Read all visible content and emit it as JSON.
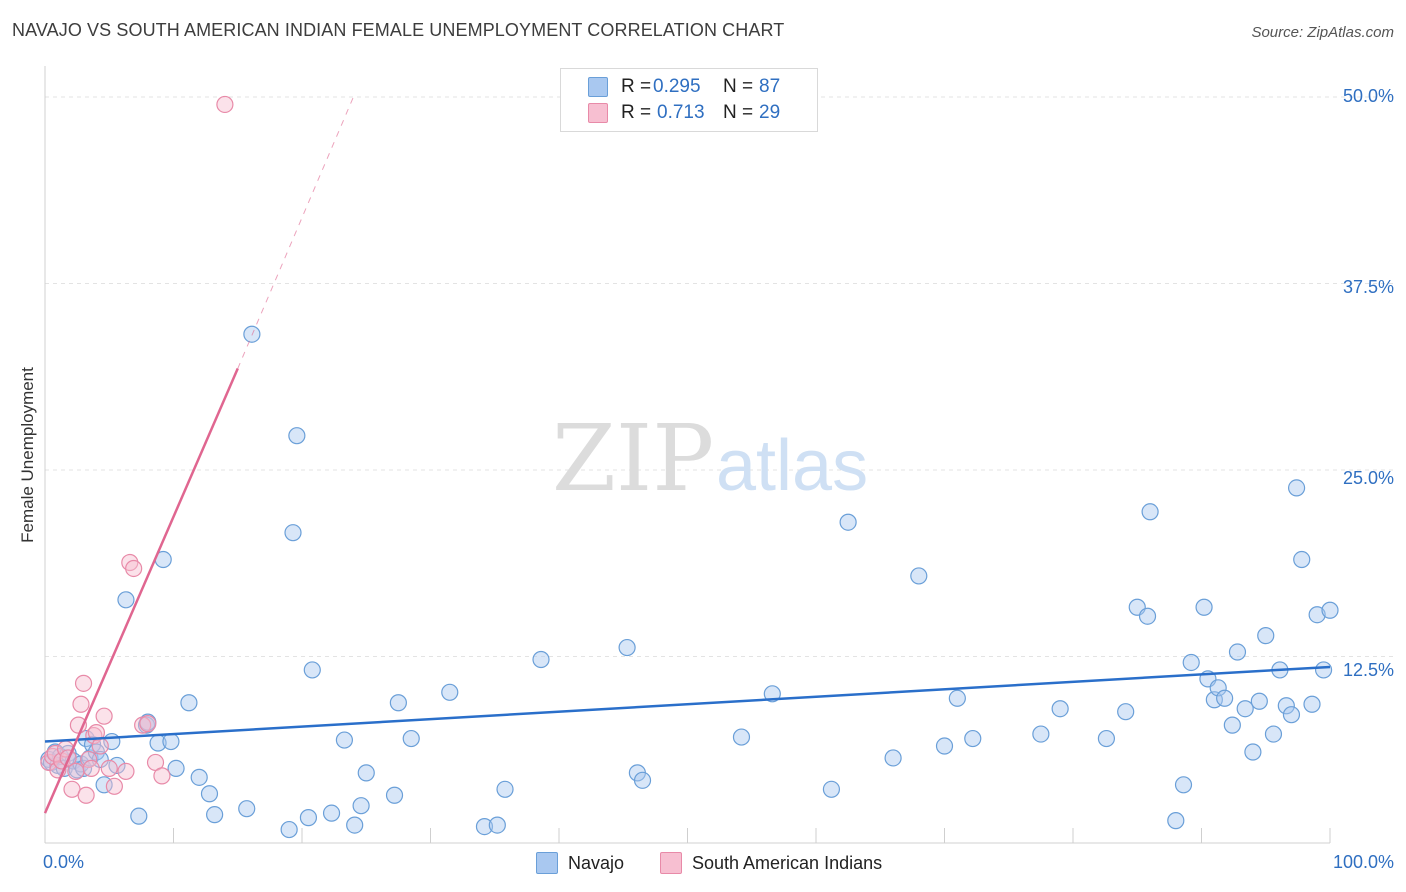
{
  "title": "NAVAJO VS SOUTH AMERICAN INDIAN FEMALE UNEMPLOYMENT CORRELATION CHART",
  "source": "Source: ZipAtlas.com",
  "watermark": {
    "zip": "ZIP",
    "atlas": "atlas"
  },
  "legend": {
    "rows": [
      {
        "r_label": "R =",
        "r_value": "0.295",
        "n_label": "N =",
        "n_value": "87",
        "color": "#a9c8f0",
        "stroke": "#6a9fd8"
      },
      {
        "r_label": "R =",
        "r_value": "0.713",
        "n_label": "N =",
        "n_value": "29",
        "color": "#f7bfd1",
        "stroke": "#e88aa8"
      }
    ]
  },
  "bottom_legend": {
    "navajo": "Navajo",
    "south_american": "South American Indians"
  },
  "axis": {
    "x_min_label": "0.0%",
    "x_max_label": "100.0%",
    "y_ticks": [
      "12.5%",
      "25.0%",
      "37.5%",
      "50.0%"
    ],
    "ylabel": "Female Unemployment"
  },
  "colors": {
    "navajo_fill": "#a9c8f0",
    "navajo_stroke": "#6a9fd8",
    "navajo_line": "#2a6fca",
    "sai_fill": "#f7bfd1",
    "sai_stroke": "#e88aa8",
    "sai_line": "#e06690"
  },
  "chart_data": {
    "type": "scatter",
    "title": "NAVAJO VS SOUTH AMERICAN INDIAN FEMALE UNEMPLOYMENT CORRELATION CHART",
    "xlabel": "",
    "ylabel": "Female Unemployment",
    "xlim": [
      0,
      100
    ],
    "ylim": [
      0,
      50
    ],
    "series": [
      {
        "name": "Navajo",
        "r": 0.295,
        "n": 87,
        "trend": {
          "x0": 0,
          "y0": 6.8,
          "x1": 100,
          "y1": 11.8
        },
        "points": [
          [
            0.3,
            5.6
          ],
          [
            0.5,
            5.4
          ],
          [
            0.8,
            6.1
          ],
          [
            1.0,
            5.2
          ],
          [
            1.2,
            5.8
          ],
          [
            1.5,
            5.0
          ],
          [
            1.8,
            6.0
          ],
          [
            2.2,
            5.5
          ],
          [
            2.5,
            4.9
          ],
          [
            2.8,
            5.3
          ],
          [
            3.0,
            5.0
          ],
          [
            3.2,
            7.0
          ],
          [
            3.5,
            5.7
          ],
          [
            3.7,
            6.6
          ],
          [
            4.0,
            6.1
          ],
          [
            4.3,
            5.6
          ],
          [
            4.6,
            3.9
          ],
          [
            5.2,
            6.8
          ],
          [
            5.6,
            5.2
          ],
          [
            6.3,
            16.3
          ],
          [
            7.3,
            1.8
          ],
          [
            7.9,
            7.9
          ],
          [
            8.0,
            8.1
          ],
          [
            8.8,
            6.7
          ],
          [
            9.2,
            19.0
          ],
          [
            9.8,
            6.8
          ],
          [
            10.2,
            5.0
          ],
          [
            11.2,
            9.4
          ],
          [
            12.0,
            4.4
          ],
          [
            12.8,
            3.3
          ],
          [
            13.2,
            1.9
          ],
          [
            15.7,
            2.3
          ],
          [
            16.1,
            34.1
          ],
          [
            19.0,
            0.9
          ],
          [
            19.3,
            20.8
          ],
          [
            19.6,
            27.3
          ],
          [
            20.5,
            1.7
          ],
          [
            20.8,
            11.6
          ],
          [
            22.3,
            2.0
          ],
          [
            23.3,
            6.9
          ],
          [
            24.1,
            1.2
          ],
          [
            24.6,
            2.5
          ],
          [
            25.0,
            4.7
          ],
          [
            27.2,
            3.2
          ],
          [
            27.5,
            9.4
          ],
          [
            28.5,
            7.0
          ],
          [
            31.5,
            10.1
          ],
          [
            34.2,
            1.1
          ],
          [
            35.2,
            1.2
          ],
          [
            35.8,
            3.6
          ],
          [
            38.6,
            12.3
          ],
          [
            45.3,
            13.1
          ],
          [
            46.1,
            4.7
          ],
          [
            46.5,
            4.2
          ],
          [
            54.2,
            7.1
          ],
          [
            56.6,
            10.0
          ],
          [
            61.2,
            3.6
          ],
          [
            62.5,
            21.5
          ],
          [
            66.0,
            5.7
          ],
          [
            68.0,
            17.9
          ],
          [
            70.0,
            6.5
          ],
          [
            71.0,
            9.7
          ],
          [
            72.2,
            7.0
          ],
          [
            77.5,
            7.3
          ],
          [
            79.0,
            9.0
          ],
          [
            82.6,
            7.0
          ],
          [
            84.1,
            8.8
          ],
          [
            85.0,
            15.8
          ],
          [
            85.8,
            15.2
          ],
          [
            86.0,
            22.2
          ],
          [
            88.0,
            1.5
          ],
          [
            88.6,
            3.9
          ],
          [
            89.2,
            12.1
          ],
          [
            90.2,
            15.8
          ],
          [
            90.5,
            11.0
          ],
          [
            91.0,
            9.6
          ],
          [
            91.3,
            10.4
          ],
          [
            91.8,
            9.7
          ],
          [
            92.4,
            7.9
          ],
          [
            92.8,
            12.8
          ],
          [
            93.4,
            9.0
          ],
          [
            94.0,
            6.1
          ],
          [
            94.5,
            9.5
          ],
          [
            95.0,
            13.9
          ],
          [
            95.6,
            7.3
          ],
          [
            96.1,
            11.6
          ],
          [
            96.6,
            9.2
          ],
          [
            97.0,
            8.6
          ],
          [
            97.4,
            23.8
          ],
          [
            97.8,
            19.0
          ],
          [
            98.6,
            9.3
          ],
          [
            99.0,
            15.3
          ],
          [
            99.5,
            11.6
          ],
          [
            100.0,
            15.6
          ]
        ]
      },
      {
        "name": "South American Indians",
        "r": 0.713,
        "n": 29,
        "trend": {
          "x0": 0,
          "y0": 2.0,
          "x1": 15,
          "y1": 31.8,
          "dash_x1": 24,
          "dash_y1": 50
        },
        "points": [
          [
            0.3,
            5.4
          ],
          [
            0.6,
            5.8
          ],
          [
            0.8,
            6.0
          ],
          [
            1.0,
            4.9
          ],
          [
            1.3,
            5.5
          ],
          [
            1.6,
            6.3
          ],
          [
            1.8,
            5.7
          ],
          [
            2.1,
            3.6
          ],
          [
            2.4,
            4.8
          ],
          [
            2.6,
            7.9
          ],
          [
            2.8,
            9.3
          ],
          [
            3.0,
            10.7
          ],
          [
            3.2,
            3.2
          ],
          [
            3.4,
            5.6
          ],
          [
            3.6,
            5.0
          ],
          [
            3.8,
            7.2
          ],
          [
            4.0,
            7.4
          ],
          [
            4.3,
            6.5
          ],
          [
            4.6,
            8.5
          ],
          [
            5.0,
            5.0
          ],
          [
            5.4,
            3.8
          ],
          [
            6.3,
            4.8
          ],
          [
            6.6,
            18.8
          ],
          [
            6.9,
            18.4
          ],
          [
            7.6,
            7.9
          ],
          [
            8.0,
            8.0
          ],
          [
            8.6,
            5.4
          ],
          [
            9.1,
            4.5
          ],
          [
            14.0,
            49.5
          ]
        ]
      }
    ]
  }
}
